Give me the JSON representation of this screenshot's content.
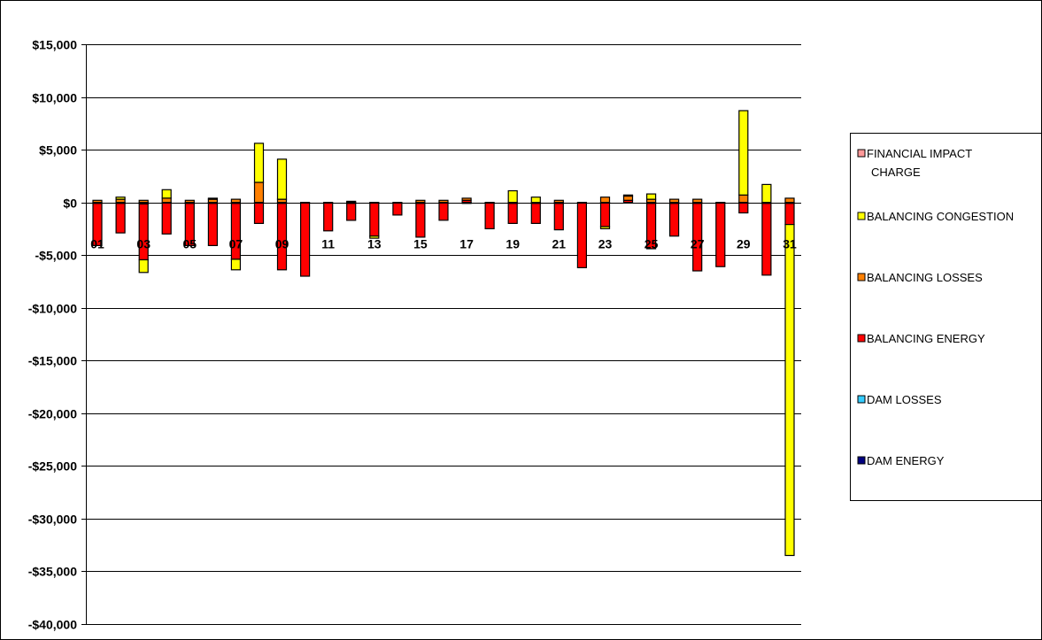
{
  "chart_data": {
    "type": "bar",
    "stacked": true,
    "title": "",
    "xlabel": "",
    "ylabel": "",
    "ylim": [
      -40000,
      15000
    ],
    "y_ticks": [
      15000,
      10000,
      5000,
      0,
      -5000,
      -10000,
      -15000,
      -20000,
      -25000,
      -30000,
      -35000,
      -40000
    ],
    "y_tick_labels": [
      "$15,000",
      "$10,000",
      "$5,000",
      "$0",
      "-$5,000",
      "-$10,000",
      "-$15,000",
      "-$20,000",
      "-$25,000",
      "-$30,000",
      "-$35,000",
      "-$40,000"
    ],
    "grid": true,
    "legend_position": "right",
    "categories": [
      "01",
      "02",
      "03",
      "04",
      "05",
      "06",
      "07",
      "08",
      "09",
      "10",
      "11",
      "12",
      "13",
      "14",
      "15",
      "16",
      "17",
      "18",
      "19",
      "20",
      "21",
      "22",
      "23",
      "24",
      "25",
      "26",
      "27",
      "28",
      "29",
      "30",
      "31"
    ],
    "x_tick_labels": [
      "01",
      "03",
      "05",
      "07",
      "09",
      "11",
      "13",
      "15",
      "17",
      "19",
      "21",
      "23",
      "25",
      "27",
      "29",
      "31"
    ],
    "series": [
      {
        "name": "DAM ENERGY",
        "color": "#000080",
        "values": [
          -100,
          -100,
          -150,
          0,
          -100,
          -100,
          -100,
          0,
          -100,
          0,
          0,
          -100,
          0,
          0,
          -100,
          0,
          -100,
          0,
          -100,
          -100,
          -100,
          0,
          0,
          0,
          -100,
          -100,
          -100,
          0,
          0,
          -100,
          -100
        ]
      },
      {
        "name": "DAM LOSSES",
        "color": "#33CCFF",
        "values": [
          0,
          0,
          0,
          0,
          0,
          0,
          0,
          0,
          0,
          0,
          0,
          0,
          0,
          0,
          0,
          0,
          0,
          0,
          0,
          0,
          0,
          0,
          0,
          0,
          0,
          0,
          0,
          0,
          0,
          0,
          0
        ]
      },
      {
        "name": "BALANCING ENERGY",
        "color": "#FF0000",
        "values": [
          -4000,
          -2800,
          -5300,
          -3000,
          -4000,
          -4000,
          -5300,
          -2000,
          -6300,
          -7000,
          -2700,
          -1600,
          -3200,
          -1200,
          -3200,
          -1700,
          200,
          -2500,
          -1900,
          -1900,
          -2500,
          -6200,
          -2300,
          200,
          -4300,
          -3100,
          -6400,
          -6100,
          -1000,
          -6800,
          -2000
        ]
      },
      {
        "name": "BALANCING LOSSES",
        "color": "#FF8000",
        "values": [
          200,
          300,
          200,
          400,
          200,
          300,
          300,
          1900,
          300,
          0,
          0,
          100,
          0,
          0,
          200,
          200,
          200,
          0,
          0,
          0,
          200,
          0,
          500,
          400,
          300,
          300,
          300,
          0,
          700,
          0,
          400
        ]
      },
      {
        "name": "BALANCING CONGESTION",
        "color": "#FFFF00",
        "values": [
          0,
          200,
          -1200,
          800,
          0,
          100,
          -1000,
          3700,
          3800,
          0,
          0,
          0,
          -200,
          0,
          0,
          0,
          0,
          0,
          1100,
          500,
          0,
          0,
          -200,
          100,
          500,
          0,
          0,
          0,
          8000,
          1700,
          -31400
        ]
      },
      {
        "name": "FINANCIAL IMPACT CHARGE",
        "color": "#FF9999",
        "values": [
          0,
          0,
          0,
          0,
          0,
          0,
          0,
          0,
          0,
          0,
          0,
          0,
          0,
          0,
          0,
          0,
          0,
          0,
          0,
          0,
          0,
          0,
          0,
          0,
          0,
          0,
          0,
          0,
          0,
          0,
          0
        ]
      }
    ]
  }
}
